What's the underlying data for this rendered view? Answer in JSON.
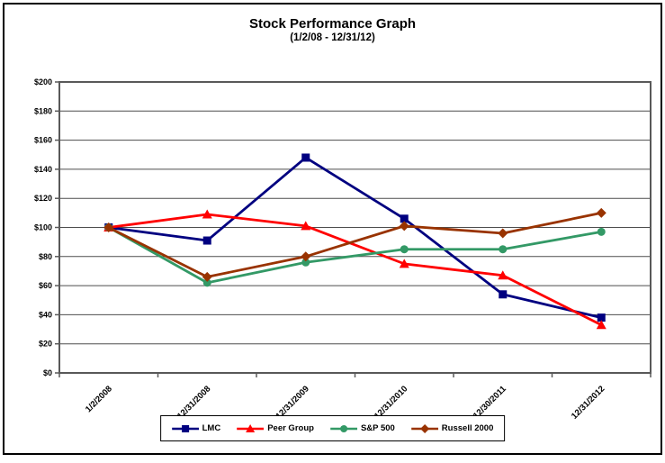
{
  "chart_data": {
    "type": "line",
    "title": "Stock Performance Graph",
    "subtitle": "(1/2/08 - 12/31/12)",
    "categories": [
      "1/2/2008",
      "12/31/2008",
      "12/31/2009",
      "12/31/2010",
      "12/30/2011",
      "12/31/2012"
    ],
    "series": [
      {
        "name": "LMC",
        "color": "#000080",
        "marker": "square",
        "values": [
          100,
          91,
          148,
          106,
          54,
          38
        ]
      },
      {
        "name": "Peer Group",
        "color": "#FF0000",
        "marker": "triangle",
        "values": [
          100,
          109,
          101,
          75,
          67,
          33
        ]
      },
      {
        "name": "S&P 500",
        "color": "#339966",
        "marker": "circle",
        "values": [
          100,
          62,
          76,
          85,
          85,
          97
        ]
      },
      {
        "name": "Russell 2000",
        "color": "#993300",
        "marker": "diamond",
        "values": [
          100,
          66,
          80,
          101,
          96,
          110
        ]
      }
    ],
    "ylim": [
      0,
      200
    ],
    "ytick_step": 20,
    "ytick_prefix": "$",
    "grid": true,
    "legend_position": "bottom",
    "gridline_color": "#4d4d4d",
    "axis_color": "#595959",
    "text_color": "#000000"
  }
}
